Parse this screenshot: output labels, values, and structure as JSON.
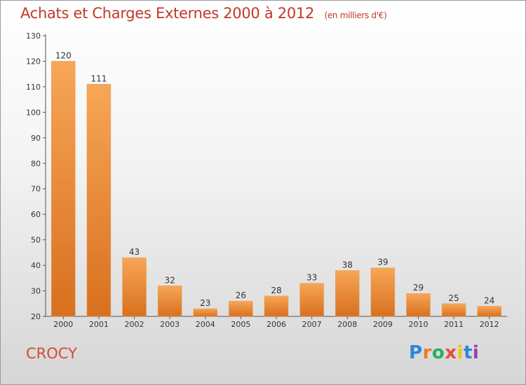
{
  "chart_data": {
    "type": "bar",
    "title": "Achats et Charges Externes 2000 à 2012",
    "subtitle": "(en milliers d'€)",
    "categories": [
      "2000",
      "2001",
      "2002",
      "2003",
      "2004",
      "2005",
      "2006",
      "2007",
      "2008",
      "2009",
      "2010",
      "2011",
      "2012"
    ],
    "values": [
      120,
      111,
      43,
      32,
      23,
      26,
      28,
      33,
      38,
      39,
      29,
      25,
      24
    ],
    "ylim": [
      20,
      130
    ],
    "yticks": [
      20,
      30,
      40,
      50,
      60,
      70,
      80,
      90,
      100,
      110,
      120,
      130
    ],
    "grid": false,
    "legend": "none",
    "bar_color": "#f0923a"
  },
  "commune": "CROCY",
  "logo": {
    "letters": [
      "P",
      "r",
      "o",
      "x",
      "i",
      "t",
      "i"
    ],
    "colors": [
      "#2e86de",
      "#e67e22",
      "#27ae60",
      "#e74c3c",
      "#f1c40f",
      "#2e86de",
      "#8e44ad"
    ]
  },
  "colors": {
    "title": "#c0392b",
    "commune": "#d64a34"
  }
}
